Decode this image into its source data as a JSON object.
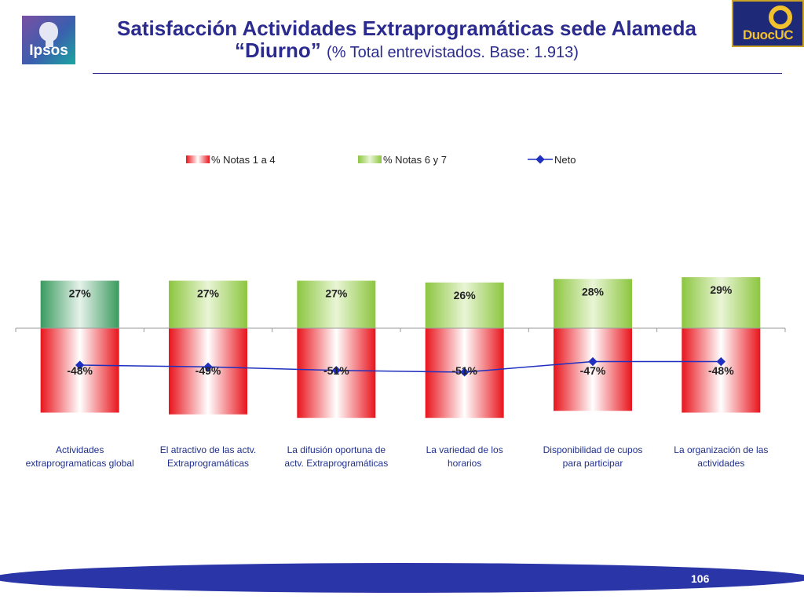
{
  "header": {
    "title_main": "Satisfacción Actividades Extraprogramáticas sede Alameda",
    "title_quoted": "“Diurno”",
    "title_note": "(% Total entrevistados. Base: 1.913)",
    "logo_left_text": "Ipsos",
    "logo_right_text": "DuocUC"
  },
  "footer": {
    "page_number": "106"
  },
  "colors": {
    "title": "#2b2b8f",
    "negative": "#e8141c",
    "positive": "#8cc63f",
    "positive_highlight": "#3a9a5e",
    "net_line": "#1f2fbf",
    "footer_band": "#2a35a8"
  },
  "chart_data": {
    "type": "bar",
    "categories": [
      "Actividades extraprogramaticas global",
      "El atractivo de las actv. Extraprogramáticas",
      "La difusión oportuna de actv. Extraprogramáticas",
      "La variedad de los horarios",
      "Disponibilidad de cupos para participar",
      "La organización de las actividades"
    ],
    "category_lines": [
      [
        "Actividades",
        "extraprogramaticas global"
      ],
      [
        "El atractivo de las actv.",
        "Extraprogramáticas"
      ],
      [
        "La difusión oportuna de",
        "actv. Extraprogramáticas"
      ],
      [
        "La variedad de los",
        "horarios"
      ],
      [
        "Disponibilidad de cupos",
        "para participar"
      ],
      [
        "La organización de las",
        "actividades"
      ]
    ],
    "series": [
      {
        "name": "% Notas 1 a 4",
        "values": [
          -48,
          -49,
          -51,
          -51,
          -47,
          -48
        ],
        "labels": [
          "-48%",
          "-49%",
          "-51%",
          "-51%",
          "-47%",
          "-48%"
        ]
      },
      {
        "name": "% Notas 6 y 7",
        "values": [
          27,
          27,
          27,
          26,
          28,
          29
        ],
        "labels": [
          "27%",
          "27%",
          "27%",
          "26%",
          "28%",
          "29%"
        ]
      },
      {
        "name": "Neto",
        "type": "line",
        "values": [
          -21,
          -22,
          -24,
          -25,
          -19,
          -19
        ]
      }
    ],
    "ylim": [
      -60,
      35
    ],
    "legend_position": "top",
    "grid": false
  }
}
